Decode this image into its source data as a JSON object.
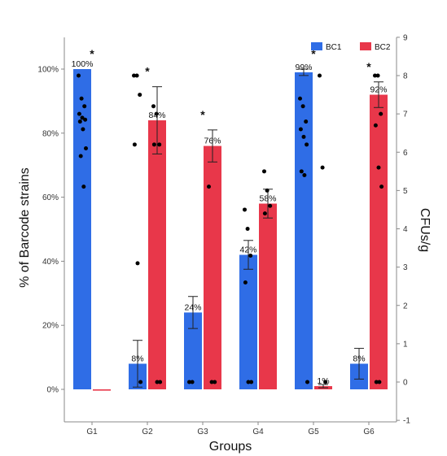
{
  "chart_data": {
    "type": "bar",
    "categories": [
      "G1",
      "G2",
      "G3",
      "G4",
      "G5",
      "G6"
    ],
    "series": [
      {
        "name": "BC1",
        "color": "#2f6de6",
        "values": [
          100,
          8,
          24,
          42,
          99,
          8
        ],
        "labels": [
          "100%",
          "8%",
          "24%",
          "42%",
          "99%",
          "8%"
        ],
        "error": [
          0,
          7.3,
          5,
          4.5,
          1,
          4.8
        ]
      },
      {
        "name": "BC2",
        "color": "#e8374a",
        "values": [
          0,
          84,
          76,
          58,
          1,
          92
        ],
        "labels": [
          "",
          "84%",
          "76%",
          "58%",
          "1%",
          "92%"
        ],
        "error": [
          0,
          10.5,
          5,
          4.5,
          0.5,
          4
        ]
      }
    ],
    "significance": [
      "*",
      "*",
      "*",
      "",
      "*",
      "*"
    ],
    "ylabel": "% of Barcode strains",
    "y2label": "CFUs/g",
    "xlabel": "Groups",
    "ylim": [
      -10,
      110
    ],
    "y_ticks": [
      0,
      20,
      40,
      60,
      80,
      100
    ],
    "y_tick_labels": [
      "0%",
      "20%",
      "40%",
      "60%",
      "80%",
      "100%"
    ],
    "y2lim": [
      -1,
      9
    ],
    "y2_ticks": [
      -1,
      0,
      1,
      2,
      3,
      4,
      5,
      6,
      7,
      8,
      9
    ],
    "y2_tick_labels": [
      "-1",
      "0",
      "1",
      "2",
      "3",
      "4",
      "5",
      "6",
      "7",
      "8",
      "9"
    ],
    "legend": {
      "placement": "top-right",
      "entries": [
        "BC1",
        "BC2"
      ]
    },
    "grid": false,
    "points_right_axis": [
      {
        "group": 0,
        "series": 0,
        "values": [
          8.0,
          7.4,
          7.2,
          7.0,
          6.9,
          6.85,
          6.8,
          6.6,
          6.1,
          5.9,
          5.1
        ]
      },
      {
        "group": 1,
        "series": 0,
        "values": [
          8.0,
          8.0,
          7.5,
          6.2,
          3.1,
          0.0
        ]
      },
      {
        "group": 1,
        "series": 1,
        "values": [
          7.2,
          7.0,
          6.2,
          6.2,
          0.0,
          0.0
        ]
      },
      {
        "group": 2,
        "series": 0,
        "values": [
          0.0,
          0.0
        ]
      },
      {
        "group": 2,
        "series": 1,
        "values": [
          5.1,
          0.0,
          0.0
        ]
      },
      {
        "group": 3,
        "series": 0,
        "values": [
          4.5,
          4.0,
          3.3,
          2.6,
          0.0,
          0.0
        ]
      },
      {
        "group": 3,
        "series": 1,
        "values": [
          5.5,
          5.0,
          4.6,
          4.4
        ]
      },
      {
        "group": 4,
        "series": 0,
        "values": [
          7.4,
          7.2,
          6.8,
          6.6,
          6.4,
          6.2,
          5.5,
          5.4,
          0.0
        ]
      },
      {
        "group": 4,
        "series": 1,
        "values": [
          8.0,
          5.6,
          0.0
        ]
      },
      {
        "group": 5,
        "series": 1,
        "values": [
          8.0,
          8.0,
          7.0,
          6.7,
          5.6,
          5.1,
          0.0,
          0.0
        ]
      }
    ]
  }
}
